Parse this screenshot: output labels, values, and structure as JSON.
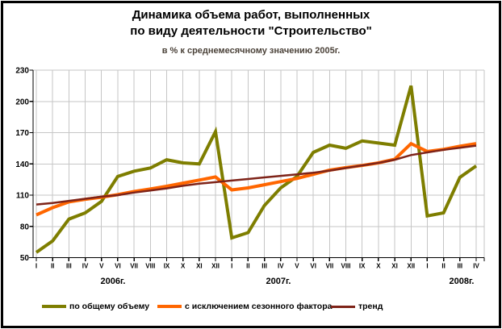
{
  "header": {
    "title_line1": "Динамика объема работ, выполненных",
    "title_line2": "по виду деятельности \"Строительство\"",
    "subtitle": "в % к среднемесячному значению 2005г."
  },
  "colors": {
    "grid": "#c6c6c6",
    "axis": "#000000",
    "text": "#000000",
    "series_total": "#7E7E00",
    "series_seasonally_adjusted": "#FF6600",
    "series_trend": "#7E2318"
  },
  "chart_data": {
    "type": "line",
    "title": "Динамика объема работ, выполненных по виду деятельности \"Строительство\"",
    "subtitle": "в % к среднемесячному значению 2005г.",
    "grid": true,
    "legend_position": "bottom",
    "x_categories": [
      "I",
      "II",
      "III",
      "IV",
      "V",
      "VI",
      "VII",
      "VIII",
      "IX",
      "X",
      "XI",
      "XII",
      "I",
      "II",
      "III",
      "IV",
      "V",
      "VI",
      "VII",
      "VIII",
      "IX",
      "X",
      "XI",
      "XII",
      "I",
      "II",
      "III",
      "IV"
    ],
    "year_labels": [
      {
        "label": "2006г."
      },
      {
        "label": "2007г."
      },
      {
        "label": "2008г."
      }
    ],
    "y_axis": {
      "min": 50,
      "max": 230,
      "step": 30,
      "tick_labels": [
        "230",
        "200",
        "170",
        "140",
        "110",
        "80",
        "50"
      ]
    },
    "series": [
      {
        "name": "по общему объему",
        "color": "#7E7E00",
        "stroke_width": 4,
        "values": [
          55,
          66,
          87,
          93,
          104,
          128,
          133,
          136,
          144,
          141,
          140,
          171,
          69,
          74,
          100,
          117,
          128,
          151,
          158,
          155,
          162,
          160,
          158,
          215,
          90,
          93,
          127,
          138
        ]
      },
      {
        "name": "с исключением сезонного фактора",
        "color": "#FF6600",
        "stroke_width": 4,
        "values": [
          91,
          98,
          103.5,
          106,
          108,
          110.5,
          113.5,
          116,
          118.5,
          121.5,
          124.5,
          127.5,
          115,
          117,
          120,
          123,
          126,
          130,
          134,
          136.5,
          138.5,
          141,
          144.5,
          159.5,
          152,
          154,
          157,
          159.5
        ]
      },
      {
        "name": "тренд",
        "color": "#7E2318",
        "stroke_width": 2.5,
        "values": [
          101,
          102.5,
          104.5,
          106.5,
          108.5,
          110,
          112.5,
          114.5,
          116.5,
          119,
          121,
          122.5,
          124,
          125.5,
          127,
          128.5,
          130,
          131.5,
          133.5,
          136,
          138.5,
          141,
          144,
          148.5,
          151,
          153.5,
          155.5,
          157.5
        ]
      }
    ]
  }
}
